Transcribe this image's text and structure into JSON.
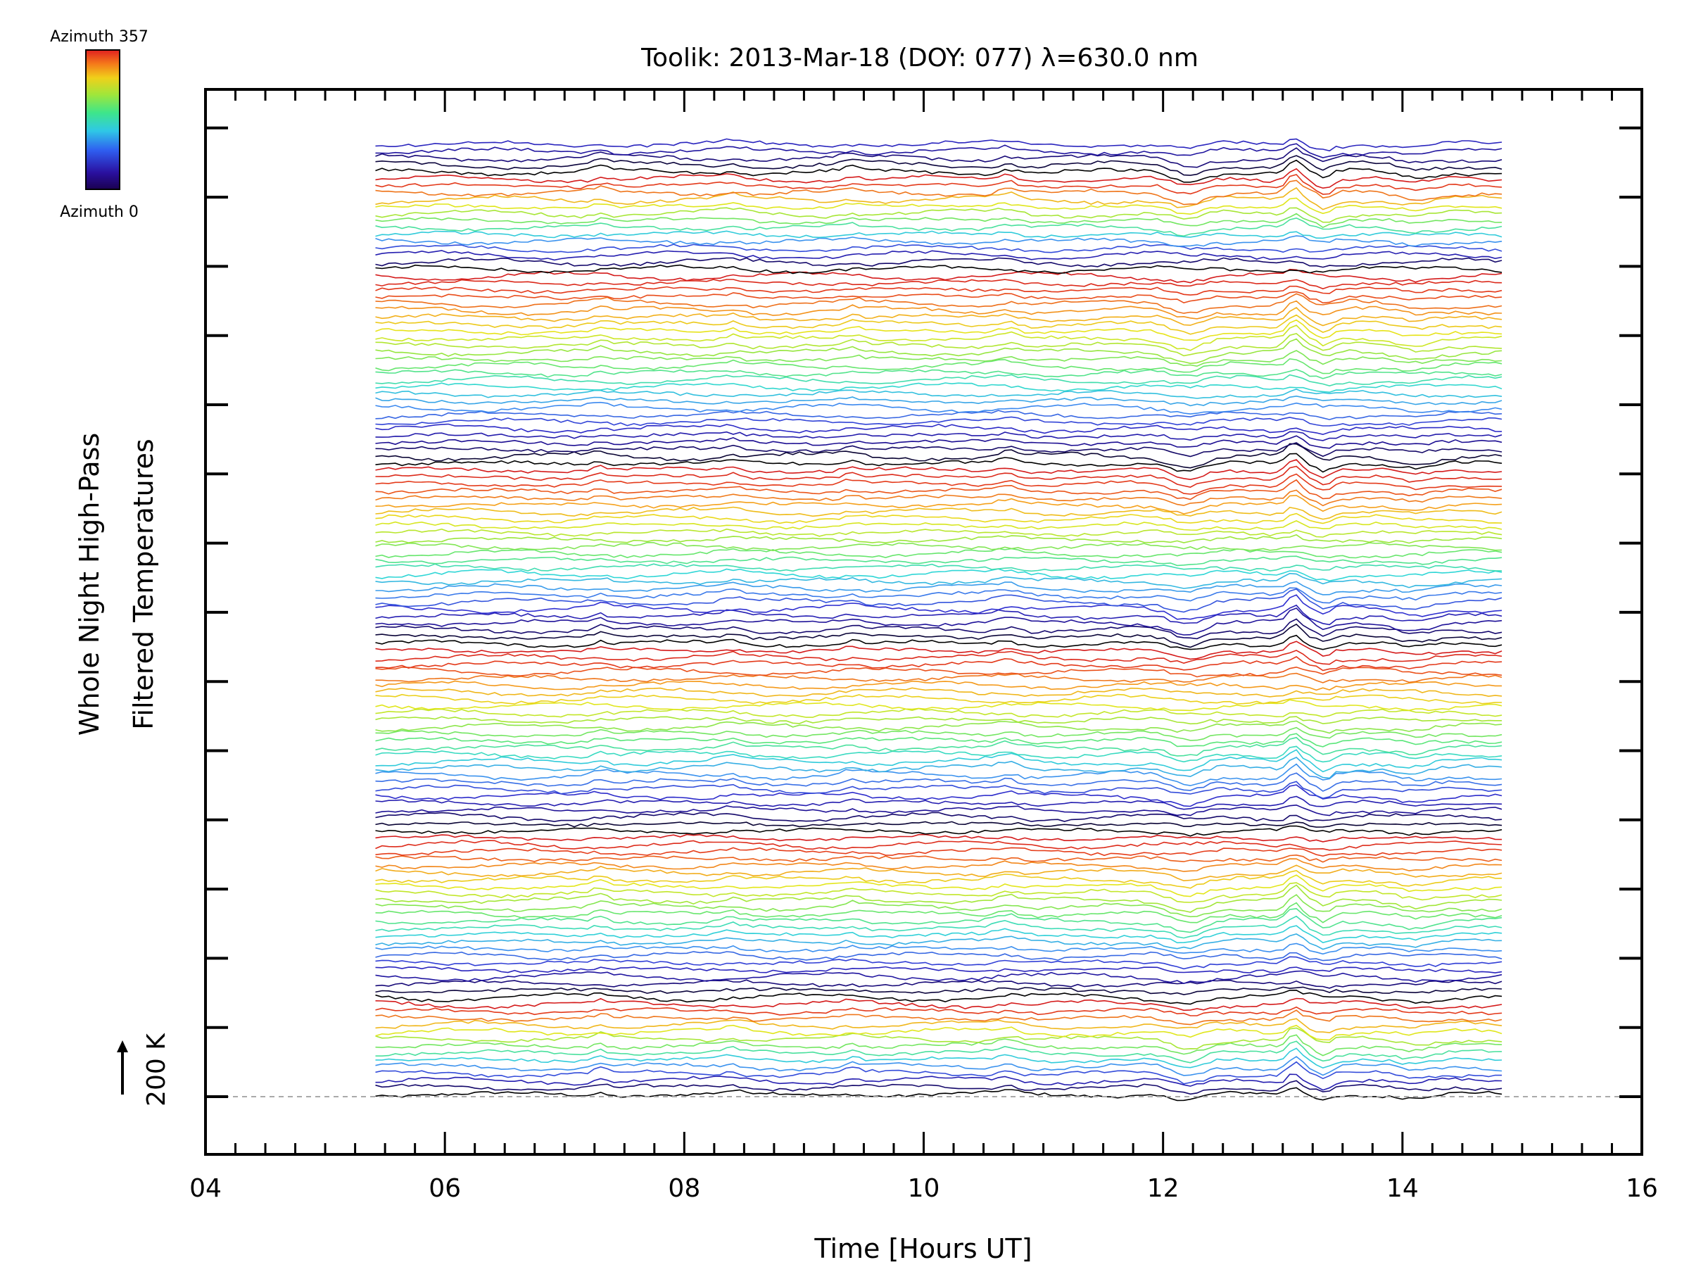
{
  "chart_data": {
    "type": "line",
    "title": "Toolik: 2013-Mar-18 (DOY: 077) λ=630.0 nm",
    "xlabel": "Time [Hours UT]",
    "ylabel_lines": [
      "Whole Night High-Pass",
      "Filtered Temperatures"
    ],
    "xlim": [
      4,
      16
    ],
    "x_ticks": [
      4,
      6,
      8,
      10,
      12,
      14,
      16
    ],
    "x_tick_labels": [
      "04",
      "06",
      "08",
      "10",
      "12",
      "14",
      "16"
    ],
    "x_minor_step": 0.25,
    "data_x_range": [
      5.42,
      14.83
    ],
    "scale_bar": {
      "label": "200 K",
      "kelvin": 200
    },
    "colorbar": {
      "top_label": "Azimuth 357",
      "bottom_label": "Azimuth 0",
      "min_azimuth": 0,
      "max_azimuth": 357
    },
    "stacked_series": {
      "count": 138,
      "colormap": [
        "#000000",
        "#1a0a8a",
        "#2f2fd0",
        "#3c8cf0",
        "#2fd6d6",
        "#5ae67a",
        "#9be63a",
        "#e6e61a",
        "#f5a01a",
        "#e8421a",
        "#d41a1a"
      ],
      "azimuth_pattern": "azimuth sweeps 0→357 repeatedly; stacked with 200 K-equivalent offset",
      "reference_dashed_line": true
    }
  }
}
